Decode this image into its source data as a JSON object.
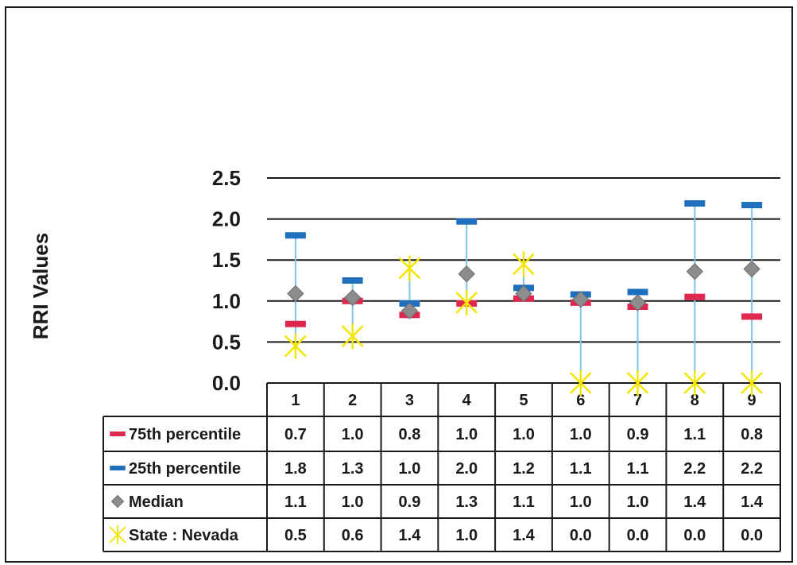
{
  "chart_data": {
    "type": "scatter",
    "title": "",
    "xlabel": "",
    "ylabel": "RRI Values",
    "ylim": [
      0,
      2.5
    ],
    "yticks": [
      "0.0",
      "0.5",
      "1.0",
      "1.5",
      "2.0",
      "2.5"
    ],
    "grid": true,
    "legend": "data-table",
    "categories": [
      "1",
      "2",
      "3",
      "4",
      "5",
      "6",
      "7",
      "8",
      "9"
    ],
    "series": [
      {
        "name": "75th percentile",
        "marker": "dash",
        "color": "#e0284f",
        "values": [
          0.72,
          1.0,
          0.83,
          0.97,
          1.03,
          0.98,
          0.93,
          1.05,
          0.81
        ],
        "table_values": [
          "0.7",
          "1.0",
          "0.8",
          "1.0",
          "1.0",
          "1.0",
          "0.9",
          "1.1",
          "0.8"
        ]
      },
      {
        "name": "25th percentile",
        "marker": "dash",
        "color": "#1f6fbf",
        "values": [
          1.8,
          1.25,
          0.97,
          1.97,
          1.16,
          1.08,
          1.11,
          2.19,
          2.17
        ],
        "table_values": [
          "1.8",
          "1.3",
          "1.0",
          "2.0",
          "1.2",
          "1.1",
          "1.1",
          "2.2",
          "2.2"
        ]
      },
      {
        "name": "Median",
        "marker": "diamond",
        "color": "#8c8c8c",
        "values": [
          1.09,
          1.04,
          0.88,
          1.33,
          1.09,
          1.02,
          0.98,
          1.36,
          1.39
        ],
        "table_values": [
          "1.1",
          "1.0",
          "0.9",
          "1.3",
          "1.1",
          "1.0",
          "1.0",
          "1.4",
          "1.4"
        ]
      },
      {
        "name": "State : Nevada",
        "marker": "star",
        "color": "#f2e600",
        "values": [
          0.45,
          0.57,
          1.4,
          0.98,
          1.45,
          0.0,
          0.0,
          0.0,
          0.0
        ],
        "table_values": [
          "0.5",
          "0.6",
          "1.4",
          "1.0",
          "1.4",
          "0.0",
          "0.0",
          "0.0",
          "0.0"
        ]
      }
    ],
    "range_line_color": "#7fc3e6"
  }
}
